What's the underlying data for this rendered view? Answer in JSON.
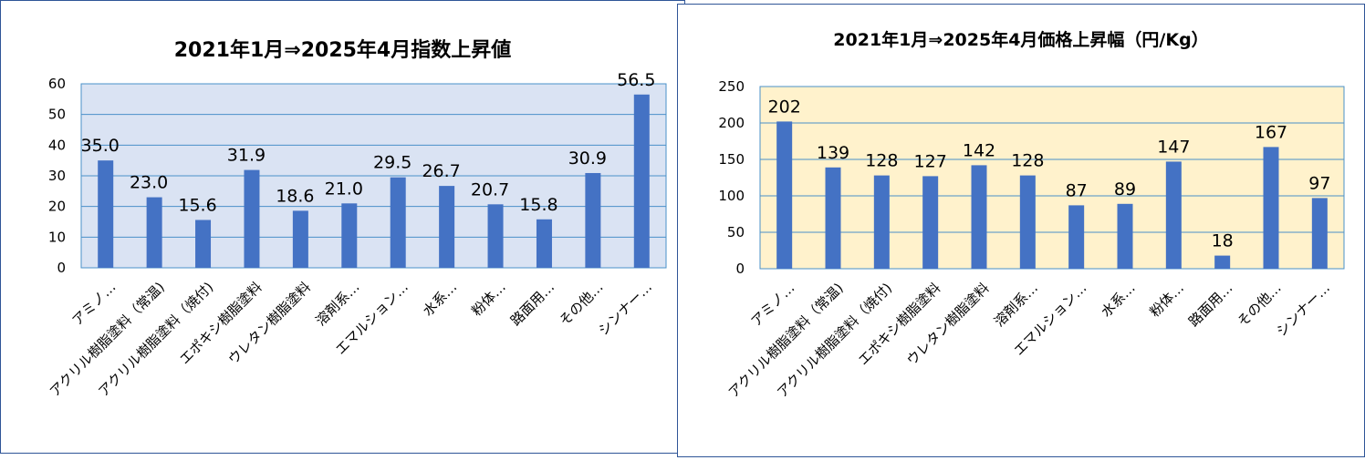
{
  "chart_data": [
    {
      "type": "bar",
      "title": "2021年1月⇒2025年4月指数上昇値",
      "xlabel": "",
      "ylabel": "",
      "ylim": [
        0,
        60
      ],
      "yticks": [
        "0",
        "10",
        "20",
        "30",
        "40",
        "50",
        "60"
      ],
      "grid": true,
      "categories": [
        "アミノ…",
        "アクリル樹脂塗料（常温)",
        "アクリル樹脂塗料（焼付)",
        "エポキシ樹脂塗料",
        "ウレタン樹脂塗料",
        "溶剤系…",
        "エマルション…",
        "水系…",
        "粉体…",
        "路面用…",
        "その他…",
        "シンナー…"
      ],
      "values": [
        35.0,
        23.0,
        15.6,
        31.9,
        18.6,
        21.0,
        29.5,
        26.7,
        20.7,
        15.8,
        30.9,
        56.5
      ],
      "data_labels": [
        "35.0",
        "23.0",
        "15.6",
        "31.9",
        "18.6",
        "21.0",
        "29.5",
        "26.7",
        "20.7",
        "15.8",
        "30.9",
        "56.5"
      ],
      "colors": {
        "bar": "#4472c4",
        "plot_background": "#dae3f3",
        "gridline": "#4a90c8"
      }
    },
    {
      "type": "bar",
      "title": "2021年1月⇒2025年4月価格上昇幅（円/Kg）",
      "xlabel": "",
      "ylabel": "",
      "ylim": [
        0,
        250
      ],
      "yticks": [
        "0",
        "50",
        "100",
        "150",
        "200",
        "250"
      ],
      "grid": true,
      "categories": [
        "アミノ…",
        "アクリル樹脂塗料（常温)",
        "アクリル樹脂塗料（焼付)",
        "エポキシ樹脂塗料",
        "ウレタン樹脂塗料",
        "溶剤系…",
        "エマルション…",
        "水系…",
        "粉体…",
        "路面用…",
        "その他…",
        "シンナー…"
      ],
      "values": [
        202,
        139,
        128,
        127,
        142,
        128,
        87,
        89,
        147,
        18,
        167,
        97
      ],
      "data_labels": [
        "202",
        "139",
        "128",
        "127",
        "142",
        "128",
        "87",
        "89",
        "147",
        "18",
        "167",
        "97"
      ],
      "colors": {
        "bar": "#4472c4",
        "plot_background": "#fff2cc",
        "gridline": "#4a90c8"
      }
    }
  ]
}
